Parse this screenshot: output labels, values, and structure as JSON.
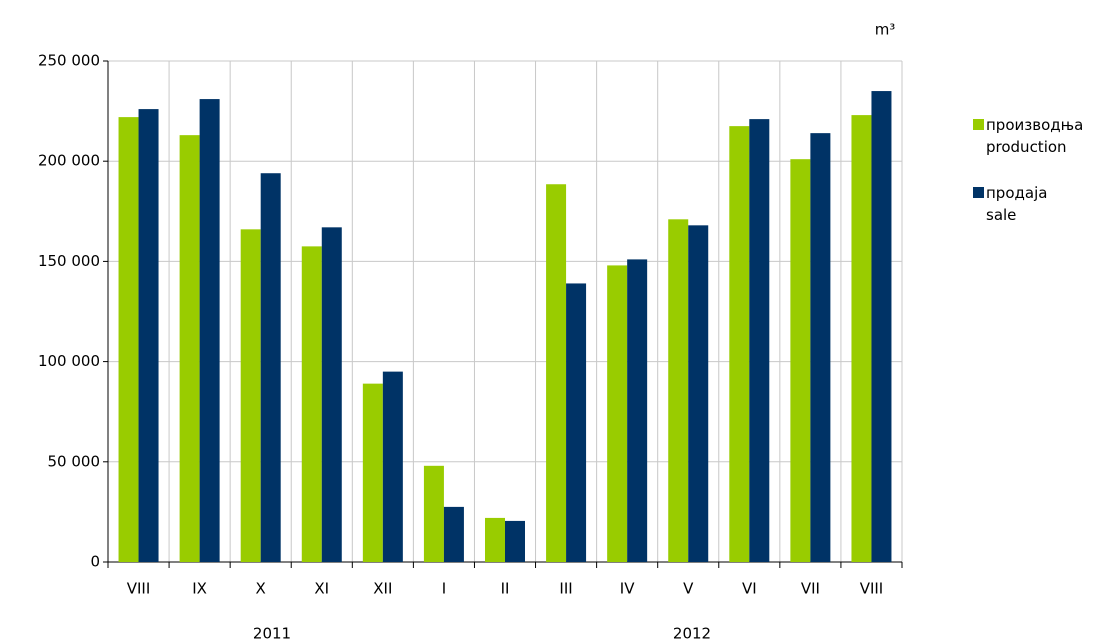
{
  "chart_data": {
    "type": "bar",
    "unit": "m³",
    "categories": [
      "VIII",
      "IX",
      "X",
      "XI",
      "XII",
      "I",
      "II",
      "III",
      "IV",
      "V",
      "VI",
      "VII",
      "VIII"
    ],
    "year_labels": [
      "2011",
      "2012"
    ],
    "series": [
      {
        "name": "производња\nproduction",
        "color": "#99cc00",
        "values": [
          222000,
          213000,
          166000,
          157500,
          89000,
          48000,
          22000,
          188500,
          148000,
          171000,
          217500,
          201000,
          223000
        ]
      },
      {
        "name": "продаја\nsale",
        "color": "#003366",
        "values": [
          226000,
          231000,
          194000,
          167000,
          95000,
          27500,
          20500,
          139000,
          151000,
          168000,
          221000,
          214000,
          235000
        ]
      }
    ],
    "ylim": [
      0,
      250000
    ],
    "yticks": [
      0,
      {
        "value": 50000,
        "label": "50 000"
      },
      {
        "value": 100000,
        "label": "100 000"
      },
      {
        "value": 150000,
        "label": "150 000"
      },
      {
        "value": 200000,
        "label": "200 000"
      },
      {
        "value": 250000,
        "label": "250 000"
      }
    ],
    "grid": true
  }
}
